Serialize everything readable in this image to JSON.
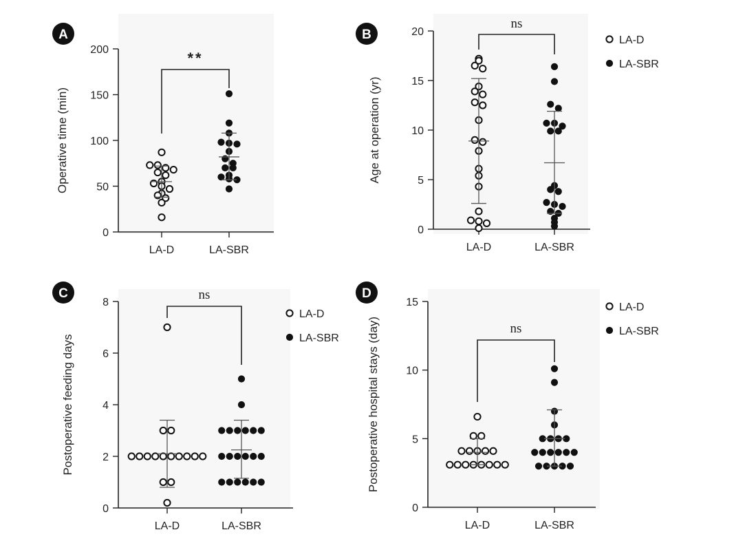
{
  "chart_data": [
    {
      "type": "scatter",
      "panel": "A",
      "ylabel": "Operative time (min)",
      "ylim": [
        0,
        200
      ],
      "yticks": [
        "0",
        "50",
        "100",
        "150",
        "200"
      ],
      "categories": [
        "LA-D",
        "LA-SBR"
      ],
      "legend": null,
      "significance": "**",
      "series": [
        {
          "category": "LA-D",
          "marker": "open",
          "values": [
            87,
            73,
            73,
            70,
            68,
            65,
            62,
            55,
            53,
            50,
            47,
            42,
            40,
            37,
            32,
            16
          ],
          "mean": 55,
          "sd_upper": 72,
          "sd_lower": 38
        },
        {
          "category": "LA-SBR",
          "marker": "filled",
          "values": [
            151,
            119,
            108,
            98,
            97,
            96,
            88,
            80,
            75,
            70,
            70,
            62,
            60,
            58,
            57,
            47
          ],
          "mean": 82,
          "sd_upper": 108,
          "sd_lower": 57
        }
      ]
    },
    {
      "type": "scatter",
      "panel": "B",
      "ylabel": "Age at operation (yr)",
      "ylim": [
        0,
        20
      ],
      "yticks": [
        "0",
        "5",
        "10",
        "15",
        "20"
      ],
      "categories": [
        "LA-D",
        "LA-SBR"
      ],
      "legend": {
        "placement": "top-right",
        "entries": [
          {
            "label": "LA-D",
            "marker": "open"
          },
          {
            "label": "LA-SBR",
            "marker": "filled"
          }
        ]
      },
      "significance": "ns",
      "series": [
        {
          "category": "LA-D",
          "marker": "open",
          "values": [
            17.2,
            17.0,
            16.5,
            16.2,
            14.4,
            13.9,
            13.6,
            12.8,
            12.5,
            11.0,
            9.0,
            8.8,
            7.9,
            6.1,
            5.4,
            4.3,
            1.8,
            0.9,
            0.8,
            0.6,
            0.1
          ],
          "mean": 8.9,
          "sd_upper": 15.2,
          "sd_lower": 2.6
        },
        {
          "category": "LA-SBR",
          "marker": "filled",
          "values": [
            16.4,
            14.9,
            12.6,
            12.2,
            10.7,
            10.7,
            10.4,
            9.9,
            9.9,
            4.4,
            4.0,
            3.8,
            2.7,
            2.5,
            2.3,
            1.8,
            1.6,
            1.1,
            0.7,
            0.3
          ],
          "mean": 6.7,
          "sd_upper": 11.9,
          "sd_lower": 1.6
        }
      ]
    },
    {
      "type": "scatter",
      "panel": "C",
      "ylabel": "Postoperative feeding days",
      "ylim": [
        0,
        8
      ],
      "yticks": [
        "0",
        "2",
        "4",
        "6",
        "8"
      ],
      "categories": [
        "LA-D",
        "LA-SBR"
      ],
      "legend": {
        "placement": "top-right",
        "entries": [
          {
            "label": "LA-D",
            "marker": "open"
          },
          {
            "label": "LA-SBR",
            "marker": "filled"
          }
        ]
      },
      "significance": "ns",
      "series": [
        {
          "category": "LA-D",
          "marker": "open",
          "values": [
            7,
            3,
            3,
            2,
            2,
            2,
            2,
            2,
            2,
            2,
            2,
            2,
            2,
            1,
            1,
            0.2
          ],
          "mean": 2.1,
          "sd_upper": 3.4,
          "sd_lower": 0.8
        },
        {
          "category": "LA-SBR",
          "marker": "filled",
          "values": [
            5,
            4,
            3,
            3,
            3,
            3,
            3,
            3,
            2,
            2,
            2,
            2,
            2,
            2,
            1,
            1,
            1,
            1,
            1,
            1
          ],
          "mean": 2.25,
          "sd_upper": 3.4,
          "sd_lower": 1.15
        }
      ]
    },
    {
      "type": "scatter",
      "panel": "D",
      "ylabel": "Postoperative hospital stays (day)",
      "ylim": [
        0,
        15
      ],
      "yticks": [
        "0",
        "5",
        "10",
        "15"
      ],
      "categories": [
        "LA-D",
        "LA-SBR"
      ],
      "legend": {
        "placement": "top-right",
        "entries": [
          {
            "label": "LA-D",
            "marker": "open"
          },
          {
            "label": "LA-SBR",
            "marker": "filled"
          }
        ]
      },
      "significance": "ns",
      "series": [
        {
          "category": "LA-D",
          "marker": "open",
          "values": [
            6.6,
            5.2,
            5.2,
            4.1,
            4.1,
            4.1,
            4.1,
            4.1,
            3.1,
            3.1,
            3.1,
            3.1,
            3.1,
            3.1,
            3.1,
            3.1
          ],
          "mean": 4.0,
          "sd_upper": 5.0,
          "sd_lower": 3.1
        },
        {
          "category": "LA-SBR",
          "marker": "filled",
          "values": [
            10.1,
            9.1,
            7.0,
            6.0,
            5.0,
            5.0,
            5.0,
            5.0,
            4.0,
            4.0,
            4.0,
            4.0,
            4.0,
            4.0,
            3.0,
            3.0,
            3.0,
            3.0,
            3.0
          ],
          "mean": 5.0,
          "sd_upper": 7.1,
          "sd_lower": 3.0
        }
      ]
    }
  ]
}
